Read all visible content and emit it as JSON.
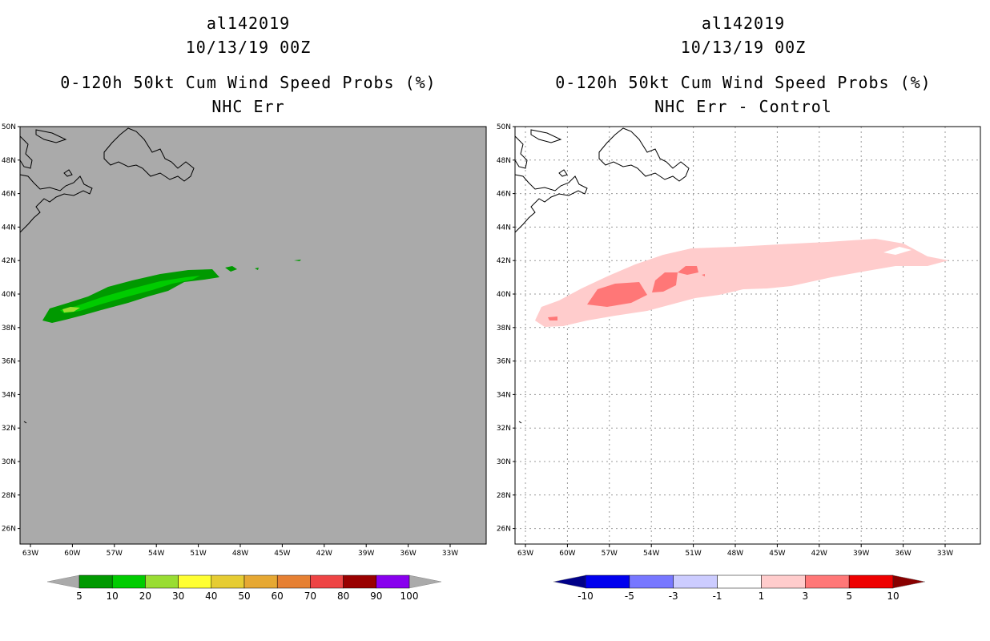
{
  "left_panel": {
    "title_lines": [
      "al142019",
      "10/13/19 00Z",
      "0-120h 50kt Cum Wind Speed Probs (%)",
      "NHC Err"
    ],
    "background": "#aaaaaa",
    "colorbar": {
      "colors": [
        "#009900",
        "#00cc00",
        "#99dd33",
        "#ffff33",
        "#e6cc33",
        "#e6a833",
        "#e68033",
        "#ee4444",
        "#990000",
        "#8800ee"
      ],
      "labels": [
        "5",
        "10",
        "20",
        "30",
        "40",
        "50",
        "60",
        "70",
        "80",
        "90",
        "100"
      ],
      "end_color": "#aaaaaa"
    }
  },
  "right_panel": {
    "title_lines": [
      "al142019",
      "10/13/19 00Z",
      "0-120h 50kt Cum Wind Speed Probs (%)",
      "NHC Err - Control"
    ],
    "background": "#ffffff",
    "colorbar": {
      "colors": [
        "#0000ee",
        "#7777ff",
        "#ccccff",
        "#ffffff",
        "#ffcccc",
        "#ff7777",
        "#ee0000"
      ],
      "labels": [
        "-10",
        "-5",
        "-3",
        "-1",
        "1",
        "3",
        "5",
        "10"
      ],
      "low_end_color": "#000088",
      "high_end_color": "#880000"
    }
  },
  "axes": {
    "lat_labels": [
      "50N",
      "48N",
      "46N",
      "44N",
      "42N",
      "40N",
      "38N",
      "36N",
      "34N",
      "32N",
      "30N",
      "28N",
      "26N"
    ],
    "lon_labels": [
      "63W",
      "60W",
      "57W",
      "54W",
      "51W",
      "48W",
      "45W",
      "42W",
      "39W",
      "36W",
      "33W"
    ]
  }
}
